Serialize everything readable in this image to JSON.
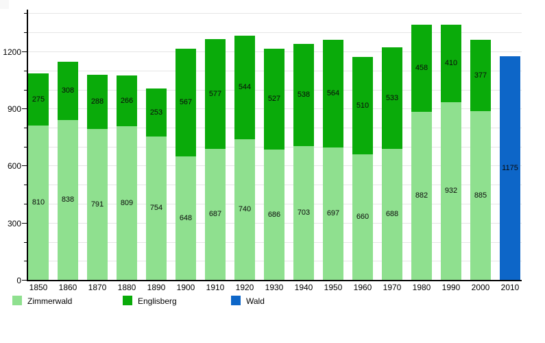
{
  "chart_data": {
    "type": "bar",
    "stacked": true,
    "title": "",
    "xlabel": "",
    "ylabel": "",
    "categories": [
      "1850",
      "1860",
      "1870",
      "1880",
      "1890",
      "1900",
      "1910",
      "1920",
      "1930",
      "1940",
      "1950",
      "1960",
      "1970",
      "1980",
      "1990",
      "2000",
      "2010"
    ],
    "series": [
      {
        "name": "Zimmerwald",
        "color": "#8FE08F",
        "values": [
          810,
          838,
          791,
          809,
          754,
          648,
          687,
          740,
          686,
          703,
          697,
          660,
          688,
          882,
          932,
          885,
          null
        ]
      },
      {
        "name": "Englisberg",
        "color": "#0AAB0A",
        "values": [
          275,
          308,
          288,
          266,
          253,
          567,
          577,
          544,
          527,
          538,
          564,
          510,
          533,
          458,
          410,
          377,
          null
        ]
      },
      {
        "name": "Wald",
        "color": "#0D66C8",
        "values": [
          null,
          null,
          null,
          null,
          null,
          null,
          null,
          null,
          null,
          null,
          null,
          null,
          null,
          null,
          null,
          null,
          1175
        ]
      }
    ],
    "totals": [
      1085,
      1146,
      1079,
      1075,
      1007,
      1215,
      1264,
      1284,
      1213,
      1241,
      1261,
      1170,
      1221,
      1340,
      1342,
      1262,
      1175
    ],
    "y_tick_labels": [
      "0",
      "300",
      "600",
      "900",
      "1200"
    ],
    "y_ticks": [
      0,
      300,
      600,
      900,
      1200
    ],
    "grid_step": 100,
    "grid_max": 1400,
    "ylim": [
      0,
      1428
    ],
    "grid": true,
    "data_labels": "centered-in-segment",
    "legend_position": "bottom"
  },
  "legend": {
    "items": [
      {
        "label": "Zimmerwald",
        "color": "#8FE08F"
      },
      {
        "label": "Englisberg",
        "color": "#0AAB0A"
      },
      {
        "label": "Wald",
        "color": "#0D66C8"
      }
    ]
  }
}
